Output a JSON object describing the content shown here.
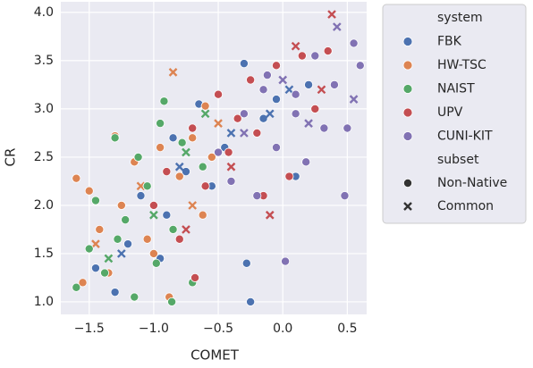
{
  "chart_data": {
    "type": "scatter",
    "x_label": "COMET",
    "y_label": "CR",
    "xlim": [
      -1.72,
      0.65
    ],
    "ylim": [
      0.87,
      4.11
    ],
    "xticks": [
      {
        "value": -1.5,
        "label": "−1.5"
      },
      {
        "value": -1.0,
        "label": "−1.0"
      },
      {
        "value": -0.5,
        "label": "−0.5"
      },
      {
        "value": 0.0,
        "label": "0.0"
      },
      0.5
    ],
    "yticks": [
      {
        "value": 1.0,
        "label": "1.0"
      },
      1.5,
      {
        "value": 2.0,
        "label": "2.0"
      },
      2.5,
      {
        "value": 3.0,
        "label": "3.0"
      },
      3.5,
      {
        "value": 4.0,
        "label": "4.0"
      }
    ],
    "grid": true,
    "background": "#eaeaf2",
    "legend_system_title": "system",
    "legend_subset_title": "subset",
    "systems": [
      {
        "name": "FBK",
        "color": "#4c72b0"
      },
      {
        "name": "HW-TSC",
        "color": "#dd8452"
      },
      {
        "name": "NAIST",
        "color": "#55a868"
      },
      {
        "name": "UPV",
        "color": "#c44e52"
      },
      {
        "name": "CUNI-KIT",
        "color": "#8172b3"
      }
    ],
    "subsets": [
      {
        "name": "Non-Native",
        "marker": "circle"
      },
      {
        "name": "Common",
        "marker": "x"
      }
    ],
    "series": [
      {
        "system": 0,
        "subset": 0,
        "x": [
          -1.45,
          -1.3,
          -1.2,
          -1.1,
          -0.95,
          -0.85,
          -0.75,
          -0.65,
          -0.55,
          -0.45,
          -0.3,
          -0.25,
          -0.15,
          -0.05,
          0.1,
          0.2,
          -0.28,
          -0.9
        ],
        "values": [
          1.35,
          1.1,
          1.6,
          2.1,
          1.45,
          2.7,
          2.35,
          3.05,
          2.2,
          2.6,
          3.47,
          1.0,
          2.9,
          3.1,
          2.3,
          3.25,
          1.4,
          1.9
        ]
      },
      {
        "system": 0,
        "subset": 1,
        "x": [
          -1.25,
          -0.8,
          -0.4,
          -0.1,
          0.05
        ],
        "values": [
          1.5,
          2.4,
          2.75,
          2.95,
          3.2
        ]
      },
      {
        "system": 1,
        "subset": 0,
        "x": [
          -1.6,
          -1.55,
          -1.5,
          -1.42,
          -1.35,
          -1.25,
          -1.15,
          -1.05,
          -0.95,
          -0.88,
          -0.8,
          -0.7,
          -0.62,
          -0.55,
          -1.3,
          -1.0,
          -0.6
        ],
        "values": [
          2.28,
          1.2,
          2.15,
          1.75,
          1.3,
          2.0,
          2.45,
          1.65,
          2.6,
          1.05,
          2.3,
          2.7,
          1.9,
          2.5,
          2.72,
          1.5,
          3.03
        ]
      },
      {
        "system": 1,
        "subset": 1,
        "x": [
          -1.45,
          -1.1,
          -0.85,
          -0.7,
          -0.5
        ],
        "values": [
          1.6,
          2.2,
          3.38,
          2.0,
          2.85
        ]
      },
      {
        "system": 2,
        "subset": 0,
        "x": [
          -1.6,
          -1.5,
          -1.45,
          -1.38,
          -1.3,
          -1.22,
          -1.15,
          -1.05,
          -0.98,
          -0.92,
          -0.85,
          -0.78,
          -0.7,
          -0.62,
          -1.28,
          -0.95,
          -0.86,
          -1.12
        ],
        "values": [
          1.15,
          1.55,
          2.05,
          1.3,
          2.7,
          1.85,
          1.05,
          2.2,
          1.4,
          3.08,
          1.75,
          2.65,
          1.2,
          2.4,
          1.65,
          2.85,
          1.0,
          2.5
        ]
      },
      {
        "system": 2,
        "subset": 1,
        "x": [
          -1.35,
          -1.0,
          -0.75,
          -0.6
        ],
        "values": [
          1.45,
          1.9,
          2.55,
          2.95
        ]
      },
      {
        "system": 3,
        "subset": 0,
        "x": [
          -1.0,
          -0.9,
          -0.8,
          -0.7,
          -0.6,
          -0.5,
          -0.42,
          -0.35,
          -0.25,
          -0.15,
          -0.05,
          0.05,
          0.15,
          0.25,
          0.35,
          -0.68,
          -0.2
        ],
        "values": [
          2.0,
          2.35,
          1.65,
          2.8,
          2.2,
          3.15,
          2.55,
          2.9,
          3.3,
          2.1,
          3.45,
          2.3,
          3.55,
          3.0,
          3.6,
          1.25,
          2.75
        ]
      },
      {
        "system": 3,
        "subset": 1,
        "x": [
          -0.75,
          -0.4,
          -0.1,
          0.1,
          0.3,
          0.38
        ],
        "values": [
          1.75,
          2.4,
          1.9,
          3.65,
          3.2,
          3.98
        ]
      },
      {
        "system": 4,
        "subset": 0,
        "x": [
          -0.5,
          -0.4,
          -0.3,
          -0.2,
          -0.12,
          -0.05,
          0.02,
          0.1,
          0.18,
          0.25,
          0.32,
          0.4,
          0.48,
          0.55,
          0.6,
          -0.15,
          0.1,
          0.5
        ],
        "values": [
          2.55,
          2.25,
          2.95,
          2.1,
          3.35,
          2.6,
          1.42,
          3.15,
          2.45,
          3.55,
          2.8,
          3.25,
          2.1,
          3.68,
          3.45,
          3.2,
          2.95,
          2.8
        ]
      },
      {
        "system": 4,
        "subset": 1,
        "x": [
          -0.3,
          0.0,
          0.2,
          0.42,
          0.55
        ],
        "values": [
          2.75,
          3.3,
          2.85,
          3.85,
          3.1
        ]
      }
    ]
  }
}
